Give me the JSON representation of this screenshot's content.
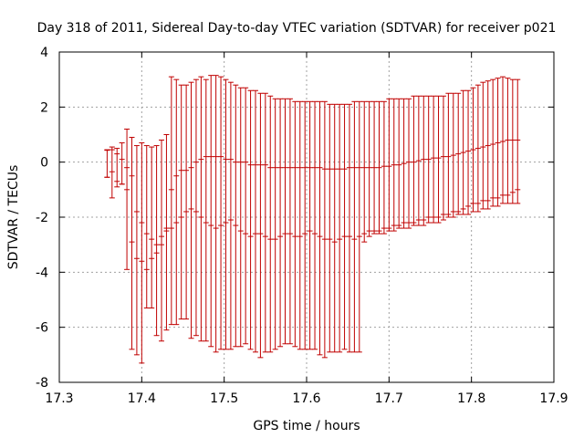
{
  "chart_data": {
    "type": "scatter",
    "title": "Day 318 of 2011, Sidereal Day-to-day VTEC variation (SDTVAR) for receiver p021",
    "xlabel": "GPS time / hours",
    "ylabel": "SDTVAR / TECUs",
    "xlim": [
      17.3,
      17.9
    ],
    "ylim": [
      -8,
      4
    ],
    "xticks": [
      "17.3",
      "17.4",
      "17.5",
      "17.6",
      "17.7",
      "17.8",
      "17.9"
    ],
    "yticks": [
      "-8",
      "-6",
      "-4",
      "-2",
      "0",
      "2",
      "4"
    ],
    "grid": true,
    "legend": "none",
    "marker": "errorbar",
    "color": "#c00000",
    "series": [
      {
        "x": [
          17.358,
          17.364,
          17.37,
          17.376,
          17.382,
          17.388,
          17.394,
          17.4,
          17.406,
          17.412,
          17.418,
          17.424,
          17.43,
          17.436,
          17.442,
          17.448,
          17.454,
          17.46,
          17.466,
          17.472,
          17.478,
          17.484,
          17.49,
          17.496,
          17.502,
          17.508,
          17.514,
          17.52,
          17.526,
          17.532,
          17.538,
          17.544,
          17.55,
          17.556,
          17.562,
          17.568,
          17.574,
          17.58,
          17.586,
          17.592,
          17.598,
          17.604,
          17.61,
          17.616,
          17.622,
          17.628,
          17.634,
          17.64,
          17.646,
          17.652,
          17.658,
          17.664,
          17.67,
          17.676,
          17.682,
          17.688,
          17.694,
          17.7,
          17.706,
          17.712,
          17.718,
          17.724,
          17.73,
          17.736,
          17.742,
          17.748,
          17.754,
          17.76,
          17.766,
          17.772,
          17.778,
          17.784,
          17.79,
          17.796,
          17.802,
          17.808,
          17.814,
          17.82,
          17.826,
          17.832,
          17.838,
          17.844,
          17.85,
          17.856
        ],
        "y": [
          0.43,
          0.45,
          0.3,
          0.1,
          -0.2,
          -0.5,
          -1.8,
          -2.2,
          -2.6,
          -2.8,
          -3.0,
          -3.0,
          -2.5,
          -2.4,
          -2.2,
          -2.0,
          -1.8,
          -1.7,
          -1.8,
          -2.0,
          -2.2,
          -2.3,
          -2.4,
          -2.3,
          -2.2,
          -2.1,
          -2.3,
          -2.5,
          -2.6,
          -2.7,
          -2.6,
          -2.6,
          -2.7,
          -2.8,
          -2.8,
          -2.7,
          -2.6,
          -2.6,
          -2.7,
          -2.7,
          -2.6,
          -2.5,
          -2.6,
          -2.7,
          -2.8,
          -2.8,
          -2.9,
          -2.8,
          -2.7,
          -2.7,
          -2.8,
          -2.7,
          -2.6,
          -2.5,
          -2.5,
          -2.5,
          -2.4,
          -2.4,
          -2.3,
          -2.3,
          -2.2,
          -2.2,
          -2.2,
          -2.1,
          -2.1,
          -2.0,
          -2.0,
          -2.0,
          -1.9,
          -1.9,
          -1.8,
          -1.8,
          -1.7,
          -1.6,
          -1.5,
          -1.5,
          -1.4,
          -1.4,
          -1.3,
          -1.3,
          -1.2,
          -1.2,
          -1.1,
          -1.0
        ],
        "ylow": [
          -0.55,
          -1.3,
          -0.9,
          -0.8,
          -3.9,
          -6.8,
          -7.0,
          -7.3,
          -5.3,
          -5.3,
          -6.3,
          -6.5,
          -6.1,
          -5.9,
          -5.9,
          -5.7,
          -5.7,
          -6.4,
          -6.3,
          -6.5,
          -6.5,
          -6.7,
          -6.9,
          -6.8,
          -6.8,
          -6.8,
          -6.7,
          -6.7,
          -6.6,
          -6.8,
          -6.9,
          -7.1,
          -6.9,
          -6.9,
          -6.8,
          -6.7,
          -6.6,
          -6.6,
          -6.7,
          -6.8,
          -6.8,
          -6.8,
          -6.8,
          -7.0,
          -7.1,
          -6.9,
          -6.9,
          -6.9,
          -6.8,
          -6.9,
          -6.9,
          -6.9,
          -2.9,
          -2.7,
          -2.6,
          -2.6,
          -2.6,
          -2.5,
          -2.5,
          -2.4,
          -2.4,
          -2.4,
          -2.3,
          -2.3,
          -2.3,
          -2.2,
          -2.2,
          -2.2,
          -2.1,
          -2.0,
          -2.0,
          -1.9,
          -1.9,
          -1.9,
          -1.8,
          -1.8,
          -1.7,
          -1.7,
          -1.6,
          -1.6,
          -1.5,
          -1.5,
          -1.5,
          -1.5
        ],
        "yhigh": [
          0.45,
          0.55,
          0.5,
          0.7,
          1.2,
          0.9,
          0.6,
          0.7,
          0.6,
          0.55,
          0.6,
          0.8,
          1.0,
          3.1,
          3.0,
          2.8,
          2.8,
          2.9,
          3.0,
          3.1,
          3.0,
          3.15,
          3.15,
          3.1,
          3.0,
          2.9,
          2.8,
          2.7,
          2.7,
          2.6,
          2.6,
          2.5,
          2.5,
          2.4,
          2.3,
          2.3,
          2.3,
          2.3,
          2.2,
          2.2,
          2.2,
          2.2,
          2.2,
          2.2,
          2.2,
          2.1,
          2.1,
          2.1,
          2.1,
          2.1,
          2.2,
          2.2,
          2.2,
          2.2,
          2.2,
          2.2,
          2.2,
          2.3,
          2.3,
          2.3,
          2.3,
          2.3,
          2.4,
          2.4,
          2.4,
          2.4,
          2.4,
          2.4,
          2.4,
          2.5,
          2.5,
          2.5,
          2.6,
          2.6,
          2.7,
          2.8,
          2.9,
          2.95,
          3.0,
          3.05,
          3.1,
          3.05,
          3.0,
          3.0
        ]
      },
      {
        "x": [
          17.358,
          17.364,
          17.37,
          17.376,
          17.382,
          17.388,
          17.394,
          17.4,
          17.406,
          17.412,
          17.418,
          17.424,
          17.43,
          17.436,
          17.442,
          17.448,
          17.454,
          17.46,
          17.466,
          17.472,
          17.478,
          17.484,
          17.49,
          17.496,
          17.502,
          17.508,
          17.514,
          17.52,
          17.526,
          17.532,
          17.538,
          17.544,
          17.55,
          17.556,
          17.562,
          17.568,
          17.574,
          17.58,
          17.586,
          17.592,
          17.598,
          17.604,
          17.61,
          17.616,
          17.622,
          17.628,
          17.634,
          17.64,
          17.646,
          17.652,
          17.658,
          17.664,
          17.67,
          17.676,
          17.682,
          17.688,
          17.694,
          17.7,
          17.706,
          17.712,
          17.718,
          17.724,
          17.73,
          17.736,
          17.742,
          17.748,
          17.754,
          17.76,
          17.766,
          17.772,
          17.778,
          17.784,
          17.79,
          17.796,
          17.802,
          17.808,
          17.814,
          17.82,
          17.826,
          17.832,
          17.838,
          17.844,
          17.85,
          17.856
        ],
        "y": [
          -0.55,
          -0.35,
          -0.7,
          -0.8,
          -1.0,
          -2.9,
          -3.5,
          -3.6,
          -3.9,
          -3.5,
          -3.3,
          -2.7,
          -2.4,
          -1.0,
          -0.5,
          -0.3,
          -0.3,
          -0.2,
          0.0,
          0.1,
          0.2,
          0.2,
          0.2,
          0.2,
          0.1,
          0.1,
          0.0,
          0.0,
          0.0,
          -0.1,
          -0.1,
          -0.1,
          -0.1,
          -0.2,
          -0.2,
          -0.2,
          -0.2,
          -0.2,
          -0.2,
          -0.2,
          -0.2,
          -0.2,
          -0.2,
          -0.2,
          -0.25,
          -0.25,
          -0.25,
          -0.25,
          -0.25,
          -0.2,
          -0.2,
          -0.2,
          -0.2,
          -0.2,
          -0.2,
          -0.2,
          -0.15,
          -0.15,
          -0.1,
          -0.1,
          -0.05,
          0.0,
          0.0,
          0.05,
          0.1,
          0.1,
          0.15,
          0.15,
          0.2,
          0.2,
          0.25,
          0.3,
          0.35,
          0.4,
          0.45,
          0.5,
          0.55,
          0.6,
          0.65,
          0.7,
          0.75,
          0.8,
          0.8,
          0.8
        ],
        "ylow": null,
        "yhigh": null
      }
    ]
  }
}
